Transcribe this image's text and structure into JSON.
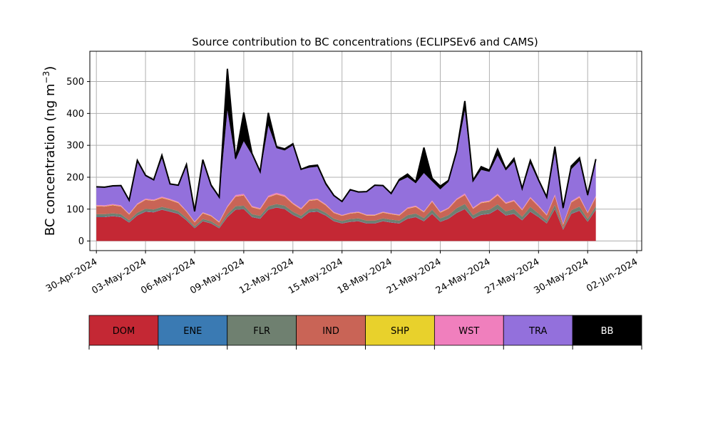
{
  "chart_data": {
    "type": "area",
    "title": "Source contribution to BC concentrations (ECLIPSEv6 and CAMS)",
    "ylabel": "BC concentration (ng m",
    "ylabel_sup": "−3",
    "ylabel_close": ")",
    "xlabel": "",
    "x_ticks": [
      "30-Apr-2024",
      "03-May-2024",
      "06-May-2024",
      "09-May-2024",
      "12-May-2024",
      "15-May-2024",
      "18-May-2024",
      "21-May-2024",
      "24-May-2024",
      "27-May-2024",
      "30-May-2024",
      "02-Jun-2024"
    ],
    "y_ticks": [
      0,
      100,
      200,
      300,
      400,
      500
    ],
    "ylim": [
      -30,
      595
    ],
    "xlim_days": [
      -0.4,
      33.3
    ],
    "grid": true,
    "legend_placement": "below",
    "legend": [
      {
        "name": "DOM",
        "color": "#c42834",
        "text_color": "#000000"
      },
      {
        "name": "ENE",
        "color": "#3a7ab3",
        "text_color": "#000000"
      },
      {
        "name": "FLR",
        "color": "#6f8070",
        "text_color": "#000000"
      },
      {
        "name": "IND",
        "color": "#c96456",
        "text_color": "#000000"
      },
      {
        "name": "SHP",
        "color": "#e8d12c",
        "text_color": "#000000"
      },
      {
        "name": "WST",
        "color": "#f07fbd",
        "text_color": "#000000"
      },
      {
        "name": "TRA",
        "color": "#9370dc",
        "text_color": "#000000"
      },
      {
        "name": "BB",
        "color": "#000000",
        "text_color": "#ffffff"
      }
    ],
    "series_keyframes": {
      "note_units": "ng m-3",
      "x_dates": [
        "01-May-2024",
        "02-May-2024",
        "02-May-2024 12h",
        "03-May-2024",
        "03-May-2024 12h",
        "04-May-2024",
        "04-May-2024 12h",
        "05-May-2024",
        "05-May-2024 12h",
        "06-May-2024",
        "06-May-2024 12h",
        "07-May-2024",
        "07-May-2024 12h",
        "08-May-2024",
        "08-May-2024 12h",
        "09-May-2024",
        "09-May-2024 12h",
        "10-May-2024",
        "10-May-2024 12h",
        "11-May-2024",
        "11-May-2024 12h",
        "12-May-2024",
        "12-May-2024 12h",
        "13-May-2024",
        "13-May-2024 12h",
        "14-May-2024",
        "14-May-2024 12h",
        "15-May-2024",
        "15-May-2024 12h",
        "16-May-2024",
        "16-May-2024 12h",
        "17-May-2024",
        "17-May-2024 12h",
        "18-May-2024",
        "18-May-2024 12h",
        "19-May-2024",
        "19-May-2024 12h",
        "20-May-2024",
        "20-May-2024 12h",
        "21-May-2024",
        "21-May-2024 12h",
        "22-May-2024",
        "22-May-2024 12h",
        "23-May-2024",
        "23-May-2024 12h",
        "24-May-2024",
        "24-May-2024 12h",
        "25-May-2024",
        "25-May-2024 12h",
        "26-May-2024",
        "26-May-2024 12h",
        "27-May-2024",
        "27-May-2024 12h",
        "28-May-2024",
        "28-May-2024 12h",
        "29-May-2024",
        "29-May-2024 12h",
        "30-May-2024",
        "30-May-2024 12h",
        "31-May-2024",
        "31-May-2024 12h",
        "01-Jun-2024"
      ],
      "DOM": [
        75,
        75,
        78,
        75,
        58,
        80,
        92,
        90,
        98,
        92,
        85,
        65,
        40,
        62,
        55,
        40,
        75,
        98,
        100,
        75,
        70,
        98,
        105,
        100,
        82,
        70,
        90,
        92,
        80,
        62,
        55,
        60,
        62,
        55,
        55,
        62,
        58,
        55,
        70,
        75,
        62,
        85,
        60,
        70,
        88,
        100,
        70,
        82,
        85,
        100,
        80,
        85,
        65,
        92,
        75,
        55,
        100,
        35,
        85,
        95,
        60,
        98
      ],
      "ENE": [
        1,
        1,
        1,
        1,
        1,
        1,
        1,
        1,
        1,
        1,
        1,
        1,
        1,
        1,
        1,
        1,
        1,
        1,
        1,
        1,
        1,
        1,
        1,
        1,
        1,
        1,
        1,
        1,
        1,
        1,
        1,
        1,
        1,
        1,
        1,
        1,
        1,
        1,
        1,
        1,
        1,
        1,
        1,
        1,
        1,
        1,
        1,
        1,
        1,
        1,
        1,
        1,
        1,
        1,
        1,
        1,
        1,
        1,
        1,
        1,
        1,
        1
      ],
      "FLR": [
        8,
        8,
        8,
        8,
        6,
        8,
        8,
        8,
        8,
        8,
        8,
        6,
        5,
        6,
        6,
        5,
        8,
        10,
        10,
        8,
        8,
        10,
        10,
        10,
        9,
        8,
        9,
        9,
        8,
        7,
        7,
        8,
        8,
        8,
        8,
        8,
        8,
        8,
        10,
        10,
        9,
        12,
        10,
        10,
        14,
        15,
        10,
        12,
        12,
        14,
        12,
        14,
        10,
        14,
        10,
        8,
        12,
        5,
        10,
        12,
        8,
        10
      ],
      "IND": [
        25,
        24,
        25,
        24,
        18,
        25,
        28,
        27,
        28,
        27,
        25,
        20,
        12,
        18,
        16,
        12,
        22,
        30,
        32,
        22,
        20,
        28,
        30,
        28,
        24,
        20,
        26,
        27,
        23,
        18,
        16,
        17,
        18,
        16,
        16,
        18,
        17,
        16,
        20,
        21,
        18,
        25,
        18,
        20,
        26,
        28,
        20,
        24,
        25,
        28,
        24,
        25,
        20,
        27,
        22,
        16,
        28,
        10,
        25,
        28,
        18,
        28
      ],
      "SHP": [
        1,
        1,
        1,
        1,
        1,
        1,
        1,
        1,
        1,
        1,
        1,
        1,
        1,
        1,
        1,
        1,
        1,
        1,
        1,
        1,
        1,
        1,
        1,
        1,
        1,
        1,
        1,
        1,
        1,
        1,
        1,
        1,
        1,
        1,
        1,
        1,
        1,
        1,
        1,
        1,
        1,
        1,
        1,
        1,
        1,
        1,
        1,
        1,
        1,
        1,
        1,
        1,
        1,
        1,
        1,
        1,
        1,
        1,
        1,
        1,
        1,
        1
      ],
      "WST": [
        3,
        3,
        3,
        3,
        2,
        3,
        3,
        3,
        3,
        3,
        3,
        2,
        2,
        2,
        2,
        2,
        3,
        4,
        4,
        3,
        3,
        4,
        4,
        4,
        3,
        3,
        3,
        3,
        3,
        2,
        2,
        2,
        2,
        2,
        2,
        2,
        2,
        2,
        3,
        3,
        2,
        3,
        2,
        3,
        3,
        4,
        3,
        3,
        3,
        4,
        3,
        3,
        3,
        3,
        3,
        2,
        4,
        2,
        3,
        4,
        2,
        4
      ],
      "TRA": [
        55,
        55,
        55,
        60,
        40,
        130,
        70,
        60,
        120,
        45,
        50,
        140,
        30,
        160,
        90,
        75,
        300,
        110,
        165,
        160,
        110,
        220,
        140,
        140,
        180,
        120,
        100,
        100,
        60,
        50,
        40,
        70,
        60,
        70,
        90,
        80,
        60,
        105,
        95,
        70,
        120,
        60,
        70,
        80,
        140,
        260,
        80,
        100,
        90,
        120,
        100,
        120,
        60,
        105,
        75,
        50,
        130,
        45,
        100,
        110,
        50,
        110
      ],
      "BB": [
        2,
        2,
        2,
        2,
        2,
        5,
        3,
        2,
        10,
        2,
        2,
        5,
        2,
        5,
        5,
        2,
        130,
        5,
        90,
        5,
        5,
        40,
        5,
        5,
        5,
        2,
        5,
        5,
        5,
        2,
        2,
        2,
        2,
        2,
        2,
        2,
        2,
        5,
        10,
        5,
        80,
        10,
        10,
        5,
        10,
        30,
        5,
        10,
        5,
        20,
        5,
        10,
        5,
        10,
        5,
        5,
        20,
        5,
        10,
        10,
        5,
        5
      ]
    }
  }
}
